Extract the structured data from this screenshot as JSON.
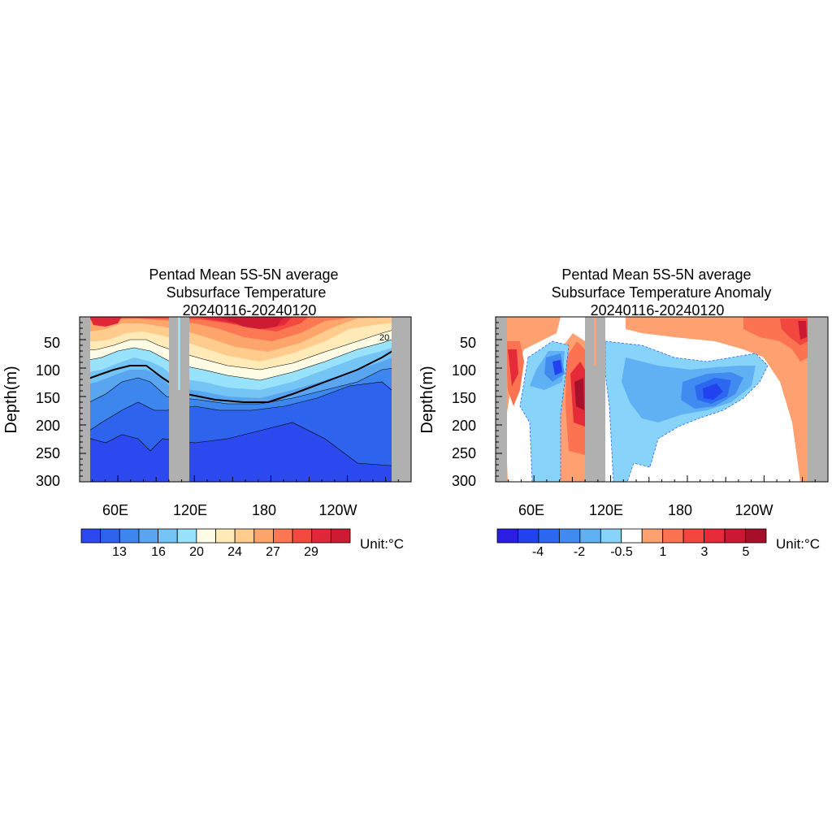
{
  "chart_data": [
    {
      "type": "heatmap",
      "title": "Pentad Mean 5S-5N average",
      "subtitle": "Subsurface Temperature",
      "date_range": "20240116-20240120",
      "ylabel": "Depth(m)",
      "xlabel": "",
      "y_ticks": [
        "50",
        "100",
        "150",
        "200",
        "250",
        "300"
      ],
      "y_tick_values": [
        50,
        100,
        150,
        200,
        250,
        300
      ],
      "ylim": [
        300,
        10
      ],
      "x_ticks": [
        "60E",
        "120E",
        "180",
        "120W"
      ],
      "x_tick_values": [
        60,
        120,
        180,
        240
      ],
      "xlim": [
        30,
        290
      ],
      "contour_label": "20",
      "unit_label": "Unit:°C",
      "colorbar_labels": [
        "13",
        "16",
        "20",
        "24",
        "27",
        "29"
      ],
      "colors": [
        "#2c48ef",
        "#2e63ee",
        "#3d86ee",
        "#5aa5f0",
        "#74c4f5",
        "#99e2fb",
        "#fffce6",
        "#ffeab8",
        "#ffcc8e",
        "#fea56c",
        "#fc7852",
        "#f24a3e",
        "#e2273a",
        "#cd1b34"
      ],
      "land_color": "#b0b0b0"
    },
    {
      "type": "heatmap",
      "title": "Pentad Mean 5S-5N average",
      "subtitle": "Subsurface Temperature Anomaly",
      "date_range": "20240116-20240120",
      "ylabel": "Depth(m)",
      "xlabel": "",
      "y_ticks": [
        "50",
        "100",
        "150",
        "200",
        "250",
        "300"
      ],
      "y_tick_values": [
        50,
        100,
        150,
        200,
        250,
        300
      ],
      "ylim": [
        300,
        10
      ],
      "x_ticks": [
        "60E",
        "120E",
        "180",
        "120W"
      ],
      "x_tick_values": [
        60,
        120,
        180,
        240
      ],
      "xlim": [
        30,
        290
      ],
      "unit_label": "Unit:°C",
      "colorbar_labels": [
        "-4",
        "-2",
        "-0.5",
        "1",
        "3",
        "5"
      ],
      "colors": [
        "#2a1ee3",
        "#2242f0",
        "#2c67f0",
        "#3f8bf0",
        "#5fb1f3",
        "#87d3fa",
        "#ffffff",
        "#fea070",
        "#fb7350",
        "#f2473e",
        "#e52a3a",
        "#cc1933",
        "#a6102b"
      ],
      "land_color": "#b0b0b0"
    }
  ]
}
